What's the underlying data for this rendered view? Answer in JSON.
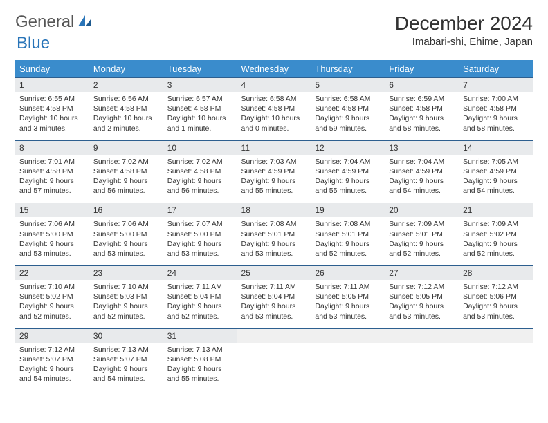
{
  "logo": {
    "general": "General",
    "blue": "Blue"
  },
  "header": {
    "month_title": "December 2024",
    "location": "Imabari-shi, Ehime, Japan"
  },
  "colors": {
    "header_bg": "#3a8ccc",
    "header_text": "#ffffff",
    "date_bg": "#e8eaec",
    "date_border": "#2d5f8f",
    "body_text": "#333333",
    "logo_blue": "#2874b8",
    "logo_gray": "#555555",
    "page_bg": "#ffffff"
  },
  "day_labels": [
    "Sunday",
    "Monday",
    "Tuesday",
    "Wednesday",
    "Thursday",
    "Friday",
    "Saturday"
  ],
  "weeks": [
    {
      "dates": [
        "1",
        "2",
        "3",
        "4",
        "5",
        "6",
        "7"
      ],
      "details": [
        {
          "sunrise": "Sunrise: 6:55 AM",
          "sunset": "Sunset: 4:58 PM",
          "day1": "Daylight: 10 hours",
          "day2": "and 3 minutes."
        },
        {
          "sunrise": "Sunrise: 6:56 AM",
          "sunset": "Sunset: 4:58 PM",
          "day1": "Daylight: 10 hours",
          "day2": "and 2 minutes."
        },
        {
          "sunrise": "Sunrise: 6:57 AM",
          "sunset": "Sunset: 4:58 PM",
          "day1": "Daylight: 10 hours",
          "day2": "and 1 minute."
        },
        {
          "sunrise": "Sunrise: 6:58 AM",
          "sunset": "Sunset: 4:58 PM",
          "day1": "Daylight: 10 hours",
          "day2": "and 0 minutes."
        },
        {
          "sunrise": "Sunrise: 6:58 AM",
          "sunset": "Sunset: 4:58 PM",
          "day1": "Daylight: 9 hours",
          "day2": "and 59 minutes."
        },
        {
          "sunrise": "Sunrise: 6:59 AM",
          "sunset": "Sunset: 4:58 PM",
          "day1": "Daylight: 9 hours",
          "day2": "and 58 minutes."
        },
        {
          "sunrise": "Sunrise: 7:00 AM",
          "sunset": "Sunset: 4:58 PM",
          "day1": "Daylight: 9 hours",
          "day2": "and 58 minutes."
        }
      ]
    },
    {
      "dates": [
        "8",
        "9",
        "10",
        "11",
        "12",
        "13",
        "14"
      ],
      "details": [
        {
          "sunrise": "Sunrise: 7:01 AM",
          "sunset": "Sunset: 4:58 PM",
          "day1": "Daylight: 9 hours",
          "day2": "and 57 minutes."
        },
        {
          "sunrise": "Sunrise: 7:02 AM",
          "sunset": "Sunset: 4:58 PM",
          "day1": "Daylight: 9 hours",
          "day2": "and 56 minutes."
        },
        {
          "sunrise": "Sunrise: 7:02 AM",
          "sunset": "Sunset: 4:58 PM",
          "day1": "Daylight: 9 hours",
          "day2": "and 56 minutes."
        },
        {
          "sunrise": "Sunrise: 7:03 AM",
          "sunset": "Sunset: 4:59 PM",
          "day1": "Daylight: 9 hours",
          "day2": "and 55 minutes."
        },
        {
          "sunrise": "Sunrise: 7:04 AM",
          "sunset": "Sunset: 4:59 PM",
          "day1": "Daylight: 9 hours",
          "day2": "and 55 minutes."
        },
        {
          "sunrise": "Sunrise: 7:04 AM",
          "sunset": "Sunset: 4:59 PM",
          "day1": "Daylight: 9 hours",
          "day2": "and 54 minutes."
        },
        {
          "sunrise": "Sunrise: 7:05 AM",
          "sunset": "Sunset: 4:59 PM",
          "day1": "Daylight: 9 hours",
          "day2": "and 54 minutes."
        }
      ]
    },
    {
      "dates": [
        "15",
        "16",
        "17",
        "18",
        "19",
        "20",
        "21"
      ],
      "details": [
        {
          "sunrise": "Sunrise: 7:06 AM",
          "sunset": "Sunset: 5:00 PM",
          "day1": "Daylight: 9 hours",
          "day2": "and 53 minutes."
        },
        {
          "sunrise": "Sunrise: 7:06 AM",
          "sunset": "Sunset: 5:00 PM",
          "day1": "Daylight: 9 hours",
          "day2": "and 53 minutes."
        },
        {
          "sunrise": "Sunrise: 7:07 AM",
          "sunset": "Sunset: 5:00 PM",
          "day1": "Daylight: 9 hours",
          "day2": "and 53 minutes."
        },
        {
          "sunrise": "Sunrise: 7:08 AM",
          "sunset": "Sunset: 5:01 PM",
          "day1": "Daylight: 9 hours",
          "day2": "and 53 minutes."
        },
        {
          "sunrise": "Sunrise: 7:08 AM",
          "sunset": "Sunset: 5:01 PM",
          "day1": "Daylight: 9 hours",
          "day2": "and 52 minutes."
        },
        {
          "sunrise": "Sunrise: 7:09 AM",
          "sunset": "Sunset: 5:01 PM",
          "day1": "Daylight: 9 hours",
          "day2": "and 52 minutes."
        },
        {
          "sunrise": "Sunrise: 7:09 AM",
          "sunset": "Sunset: 5:02 PM",
          "day1": "Daylight: 9 hours",
          "day2": "and 52 minutes."
        }
      ]
    },
    {
      "dates": [
        "22",
        "23",
        "24",
        "25",
        "26",
        "27",
        "28"
      ],
      "details": [
        {
          "sunrise": "Sunrise: 7:10 AM",
          "sunset": "Sunset: 5:02 PM",
          "day1": "Daylight: 9 hours",
          "day2": "and 52 minutes."
        },
        {
          "sunrise": "Sunrise: 7:10 AM",
          "sunset": "Sunset: 5:03 PM",
          "day1": "Daylight: 9 hours",
          "day2": "and 52 minutes."
        },
        {
          "sunrise": "Sunrise: 7:11 AM",
          "sunset": "Sunset: 5:04 PM",
          "day1": "Daylight: 9 hours",
          "day2": "and 52 minutes."
        },
        {
          "sunrise": "Sunrise: 7:11 AM",
          "sunset": "Sunset: 5:04 PM",
          "day1": "Daylight: 9 hours",
          "day2": "and 53 minutes."
        },
        {
          "sunrise": "Sunrise: 7:11 AM",
          "sunset": "Sunset: 5:05 PM",
          "day1": "Daylight: 9 hours",
          "day2": "and 53 minutes."
        },
        {
          "sunrise": "Sunrise: 7:12 AM",
          "sunset": "Sunset: 5:05 PM",
          "day1": "Daylight: 9 hours",
          "day2": "and 53 minutes."
        },
        {
          "sunrise": "Sunrise: 7:12 AM",
          "sunset": "Sunset: 5:06 PM",
          "day1": "Daylight: 9 hours",
          "day2": "and 53 minutes."
        }
      ]
    },
    {
      "dates": [
        "29",
        "30",
        "31",
        "",
        "",
        "",
        ""
      ],
      "details": [
        {
          "sunrise": "Sunrise: 7:12 AM",
          "sunset": "Sunset: 5:07 PM",
          "day1": "Daylight: 9 hours",
          "day2": "and 54 minutes."
        },
        {
          "sunrise": "Sunrise: 7:13 AM",
          "sunset": "Sunset: 5:07 PM",
          "day1": "Daylight: 9 hours",
          "day2": "and 54 minutes."
        },
        {
          "sunrise": "Sunrise: 7:13 AM",
          "sunset": "Sunset: 5:08 PM",
          "day1": "Daylight: 9 hours",
          "day2": "and 55 minutes."
        },
        null,
        null,
        null,
        null
      ]
    }
  ]
}
